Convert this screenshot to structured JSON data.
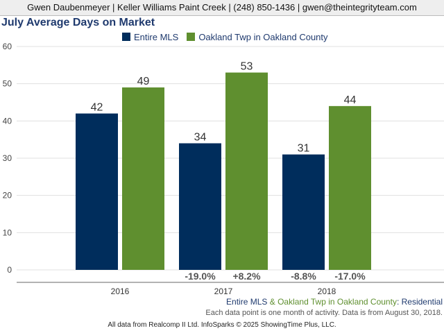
{
  "header": {
    "contact": "Gwen Daubenmeyer | Keller Williams Paint Creek | (248) 850-1436 | gwen@theintegrityteam.com"
  },
  "colors": {
    "series_1": "#002d5c",
    "series_2": "#5f8f2f",
    "title": "#1f3a6e",
    "change": "#555555"
  },
  "chart_data": {
    "type": "bar",
    "title": "July Average Days on Market",
    "categories": [
      "2016",
      "2017",
      "2018"
    ],
    "series": [
      {
        "name": "Entire MLS",
        "values": [
          42,
          34,
          31
        ],
        "changes": [
          "",
          "-19.0%",
          "-8.8%"
        ]
      },
      {
        "name": "Oakland Twp in Oakland County",
        "values": [
          49,
          53,
          44
        ],
        "changes": [
          "",
          "+8.2%",
          "-17.0%"
        ]
      }
    ],
    "ylim": [
      0,
      60
    ],
    "yticks": [
      0,
      10,
      20,
      30,
      40,
      50,
      60
    ],
    "grid": true,
    "legend_position": "top"
  },
  "footer": {
    "series_1": "Entire MLS",
    "amp": " & ",
    "series_2": "Oakland Twp in Oakland County",
    "colon": ": ",
    "category": "Residential",
    "note": "Each data point is one month of activity. Data is from August 30, 2018.",
    "source": "All data from Realcomp II Ltd. InfoSparks © 2025 ShowingTime Plus, LLC."
  }
}
